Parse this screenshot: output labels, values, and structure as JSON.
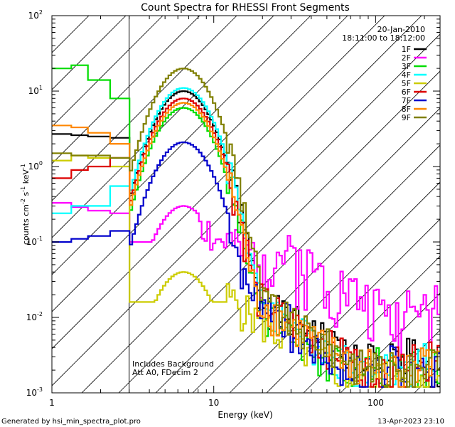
{
  "chart_data": {
    "type": "line",
    "title": "Count Spectra for RHESSI Front Segments",
    "xlabel": "Energy (keV)",
    "ylabel_parts": [
      "counts cm",
      "-2",
      " s",
      "-1",
      " keV",
      "-1"
    ],
    "xscale": "log",
    "yscale": "log",
    "xlim": [
      1,
      250
    ],
    "ylim": [
      0.001,
      100
    ],
    "x_ticks": [
      {
        "value": 1,
        "label": "1"
      },
      {
        "value": 10,
        "label": "10"
      },
      {
        "value": 100,
        "label": "100"
      }
    ],
    "y_ticks": [
      {
        "value": 0.001,
        "base": "10",
        "exp": "-3"
      },
      {
        "value": 0.01,
        "base": "10",
        "exp": "-2"
      },
      {
        "value": 0.1,
        "base": "10",
        "exp": "-1"
      },
      {
        "value": 1,
        "base": "10",
        "exp": "0"
      },
      {
        "value": 10,
        "base": "10",
        "exp": "1"
      },
      {
        "value": 100,
        "base": "10",
        "exp": "2"
      }
    ],
    "excluded_region_upper_keV": 3,
    "date": "20-Jan-2010",
    "time_range": "18:11:00 to 18:12:00",
    "legend_position": "top-right",
    "annotations": [
      "Includes Background",
      "Att A0, FDecim 2"
    ],
    "series": [
      {
        "name": "1F",
        "color": "#000000",
        "low": [
          2.7,
          2.6,
          2.5,
          2.4
        ],
        "peak": 10.0,
        "tail_a": 0.04,
        "tail_b": 0.01,
        "tail_c": 0.0025,
        "seed": 1
      },
      {
        "name": "2F",
        "color": "#ff00ff",
        "low": [
          0.33,
          0.29,
          0.26,
          0.24
        ],
        "peak": 0.3,
        "tail_a": 0.1,
        "tail_b": 0.07,
        "tail_c": 0.012,
        "seed": 2,
        "noisy": true
      },
      {
        "name": "3F",
        "color": "#00dd00",
        "low": [
          20,
          22,
          14,
          8
        ],
        "peak": 6.0,
        "tail_a": 0.03,
        "tail_b": 0.006,
        "tail_c": 0.0018,
        "seed": 3
      },
      {
        "name": "4F",
        "color": "#00ffff",
        "low": [
          0.24,
          0.3,
          0.3,
          0.55
        ],
        "peak": 11.0,
        "tail_a": 0.04,
        "tail_b": 0.008,
        "tail_c": 0.0022,
        "seed": 4
      },
      {
        "name": "5F",
        "color": "#cccc00",
        "low": [
          1.2,
          1.4,
          1.3,
          1.0
        ],
        "peak": 0.04,
        "tail_a": 0.02,
        "tail_b": 0.005,
        "tail_c": 0.0015,
        "seed": 5
      },
      {
        "name": "6F",
        "color": "#dd0000",
        "low": [
          0.7,
          0.9,
          1.0,
          1.3
        ],
        "peak": 8.0,
        "tail_a": 0.04,
        "tail_b": 0.009,
        "tail_c": 0.0022,
        "seed": 6
      },
      {
        "name": "7F",
        "color": "#0000cc",
        "low": [
          0.1,
          0.11,
          0.12,
          0.14
        ],
        "peak": 2.1,
        "tail_a": 0.04,
        "tail_b": 0.006,
        "tail_c": 0.002,
        "seed": 7
      },
      {
        "name": "8F",
        "color": "#ff8800",
        "low": [
          3.5,
          3.3,
          2.8,
          2.0
        ],
        "peak": 7.0,
        "tail_a": 0.035,
        "tail_b": 0.008,
        "tail_c": 0.002,
        "seed": 8
      },
      {
        "name": "9F",
        "color": "#808000",
        "low": [
          1.5,
          1.4,
          1.4,
          1.3
        ],
        "peak": 20.0,
        "tail_a": 0.04,
        "tail_b": 0.009,
        "tail_c": 0.0022,
        "seed": 9
      }
    ]
  },
  "footer": {
    "generator": "Generated by hsi_min_spectra_plot.pro",
    "timestamp": "13-Apr-2023 23:10"
  }
}
